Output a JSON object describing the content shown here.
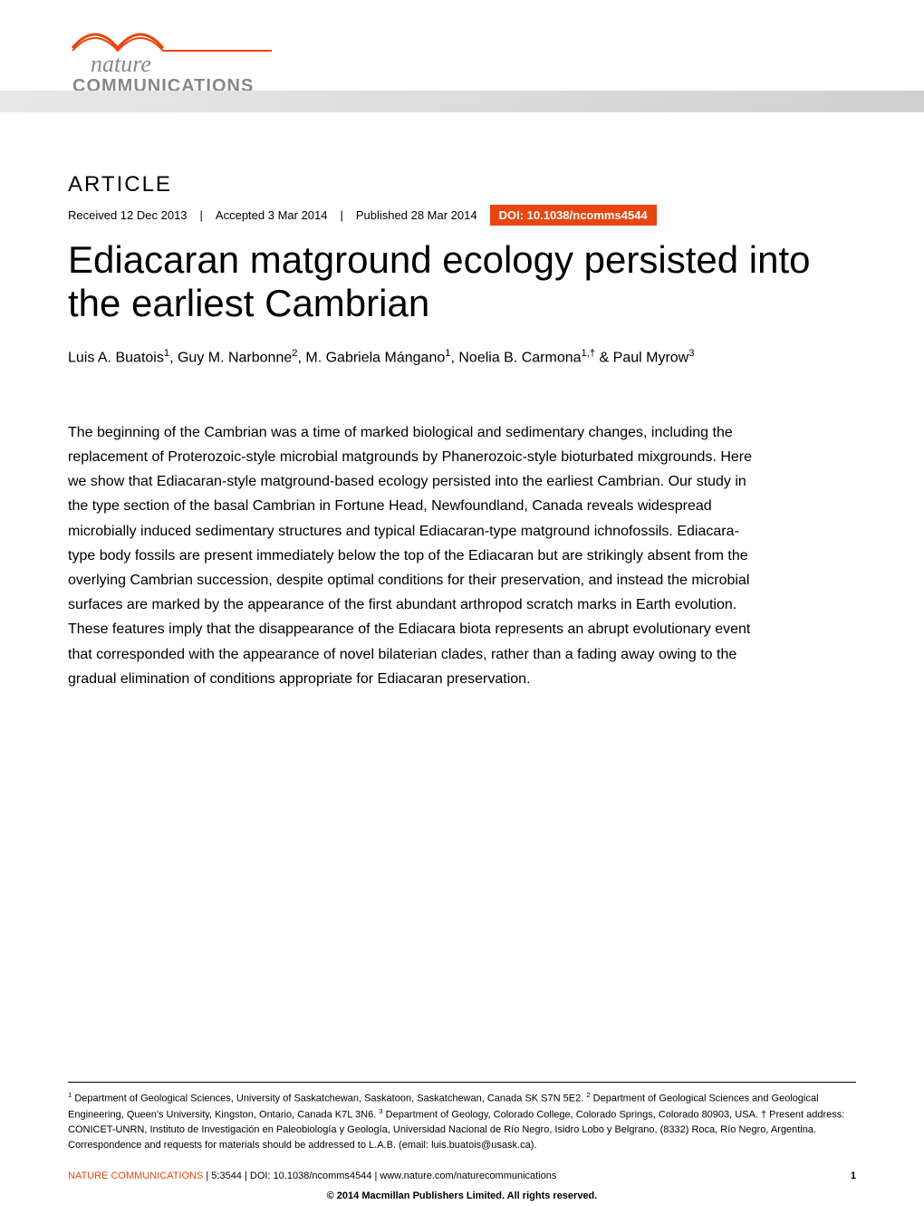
{
  "logo": {
    "nature": "nature",
    "communications": "COMMUNICATIONS",
    "swoosh_color": "#e84610"
  },
  "header": {
    "article_label": "ARTICLE",
    "received": "Received 12 Dec 2013",
    "accepted": "Accepted 3 Mar 2014",
    "published": "Published 28 Mar 2014",
    "doi": "DOI: 10.1038/ncomms4544",
    "doi_bg": "#e84610"
  },
  "title": "Ediacaran matground ecology persisted into the earliest Cambrian",
  "authors_html": "Luis A. Buatois<sup>1</sup>, Guy M. Narbonne<sup>2</sup>, M. Gabriela Mángano<sup>1</sup>, Noelia B. Carmona<sup>1,†</sup> & Paul Myrow<sup>3</sup>",
  "abstract": "The beginning of the Cambrian was a time of marked biological and sedimentary changes, including the replacement of Proterozoic-style microbial matgrounds by Phanerozoic-style bioturbated mixgrounds. Here we show that Ediacaran-style matground-based ecology persisted into the earliest Cambrian. Our study in the type section of the basal Cambrian in Fortune Head, Newfoundland, Canada reveals widespread microbially induced sedimentary structures and typical Ediacaran-type matground ichnofossils. Ediacara-type body fossils are present immediately below the top of the Ediacaran but are strikingly absent from the overlying Cambrian succession, despite optimal conditions for their preservation, and instead the microbial surfaces are marked by the appearance of the first abundant arthropod scratch marks in Earth evolution. These features imply that the disappearance of the Ediacara biota represents an abrupt evolutionary event that corresponded with the appearance of novel bilaterian clades, rather than a fading away owing to the gradual elimination of conditions appropriate for Ediacaran preservation.",
  "affiliations_html": "<sup>1</sup> Department of Geological Sciences, University of Saskatchewan, Saskatoon, Saskatchewan, Canada SK S7N 5E2. <sup>2</sup> Department of Geological Sciences and Geological Engineering, Queen's University, Kingston, Ontario, Canada K7L 3N6. <sup>3</sup> Department of Geology, Colorado College, Colorado Springs, Colorado 80903, USA. † Present address: CONICET-UNRN, Instituto de Investigación en Paleobiología y Geología, Universidad Nacional de Río Negro, Isidro Lobo y Belgrano, (8332) Roca, Río Negro, Argentina. Correspondence and requests for materials should be addressed to L.A.B. (email: luis.buatois@usask.ca).",
  "footer": {
    "journal": "NATURE COMMUNICATIONS",
    "citation": " | 5:3544 | DOI: 10.1038/ncomms4544 | www.nature.com/naturecommunications",
    "page": "1",
    "copyright": "© 2014 Macmillan Publishers Limited. All rights reserved."
  },
  "colors": {
    "accent": "#e84610",
    "gray": "#888888",
    "gradient_start": "#e8e8e8",
    "gradient_end": "#d0d0d0"
  }
}
